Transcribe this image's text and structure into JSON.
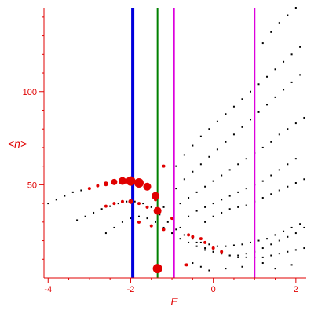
{
  "chart_data": {
    "type": "scatter",
    "title": "",
    "xlabel": "E",
    "ylabel": "<n>",
    "xlim": [
      -4.1,
      2.25
    ],
    "ylim": [
      0,
      145
    ],
    "x_ticks": [
      -4,
      -2,
      0,
      2
    ],
    "y_ticks": [
      50,
      100
    ],
    "grid": false,
    "colors": {
      "axes": "#e00000",
      "black_points": "#000000",
      "red_points": "#e00000",
      "blue_line": "#0000dd",
      "green_line": "#008000",
      "magenta_line": "#dd00dd"
    },
    "vertical_lines": [
      {
        "x": -1.95,
        "color": "#0000dd",
        "width": 4
      },
      {
        "x": -1.35,
        "color": "#008000",
        "width": 2
      },
      {
        "x": -0.95,
        "color": "#dd00dd",
        "width": 2
      },
      {
        "x": 1.0,
        "color": "#dd00dd",
        "width": 2
      }
    ],
    "black_series": [
      {
        "points": [
          [
            -4.0,
            40
          ],
          [
            -3.8,
            42
          ],
          [
            -3.6,
            44
          ],
          [
            -3.4,
            46
          ],
          [
            -3.2,
            47
          ],
          [
            -3.0,
            48
          ],
          [
            -2.8,
            49.5
          ],
          [
            -2.6,
            50.5
          ],
          [
            -2.4,
            51.5
          ],
          [
            -2.2,
            52
          ],
          [
            -2.0,
            52
          ],
          [
            -1.8,
            51
          ],
          [
            -1.6,
            49
          ],
          [
            -1.4,
            44
          ],
          [
            -1.2,
            38
          ],
          [
            -1.0,
            32
          ],
          [
            -0.8,
            27
          ],
          [
            -0.6,
            23
          ],
          [
            -0.4,
            19
          ],
          [
            -0.2,
            16
          ],
          [
            0.0,
            14
          ],
          [
            0.2,
            13
          ],
          [
            0.4,
            12
          ],
          [
            0.6,
            12
          ],
          [
            0.8,
            13
          ],
          [
            1.0,
            14
          ],
          [
            1.2,
            16
          ],
          [
            1.4,
            18
          ],
          [
            1.6,
            20
          ],
          [
            1.8,
            22
          ],
          [
            2.0,
            24
          ],
          [
            2.2,
            27
          ]
        ]
      },
      {
        "points": [
          [
            -3.3,
            31
          ],
          [
            -3.1,
            33
          ],
          [
            -2.9,
            35
          ],
          [
            -2.7,
            37
          ],
          [
            -2.5,
            38.5
          ],
          [
            -2.3,
            40
          ],
          [
            -2.1,
            41
          ],
          [
            -1.9,
            41
          ],
          [
            -1.7,
            40
          ],
          [
            -1.5,
            38
          ],
          [
            -1.3,
            34
          ],
          [
            -1.1,
            30
          ],
          [
            -0.9,
            26
          ],
          [
            -0.7,
            23
          ],
          [
            -0.5,
            21
          ],
          [
            -0.3,
            19
          ],
          [
            -0.1,
            18
          ],
          [
            0.1,
            17
          ],
          [
            0.3,
            17
          ],
          [
            0.5,
            17.5
          ],
          [
            0.7,
            18
          ],
          [
            0.9,
            19
          ],
          [
            1.1,
            20
          ],
          [
            1.3,
            21
          ],
          [
            1.5,
            23
          ],
          [
            1.7,
            25
          ],
          [
            1.9,
            27
          ],
          [
            2.1,
            29
          ]
        ]
      },
      {
        "points": [
          [
            -2.6,
            24
          ],
          [
            -2.4,
            27
          ],
          [
            -2.2,
            30
          ],
          [
            -2.0,
            32
          ],
          [
            -1.8,
            33
          ],
          [
            -1.6,
            32
          ],
          [
            -1.4,
            30
          ],
          [
            -1.2,
            27
          ],
          [
            -1.0,
            24
          ],
          [
            -0.8,
            21
          ],
          [
            -0.6,
            19
          ],
          [
            -0.4,
            17
          ],
          [
            -0.2,
            15
          ],
          [
            0.0,
            14
          ],
          [
            0.2,
            13
          ],
          [
            0.4,
            12
          ],
          [
            0.6,
            11
          ],
          [
            0.8,
            11
          ],
          [
            1.0,
            11
          ],
          [
            1.2,
            11
          ],
          [
            1.4,
            12
          ],
          [
            1.6,
            13
          ],
          [
            1.8,
            14
          ],
          [
            2.0,
            15
          ],
          [
            2.2,
            16
          ]
        ]
      },
      {
        "points": [
          [
            -0.9,
            60
          ],
          [
            -0.7,
            66
          ],
          [
            -0.5,
            71
          ],
          [
            -0.3,
            76
          ],
          [
            -0.1,
            80
          ],
          [
            0.1,
            84
          ],
          [
            0.3,
            88
          ],
          [
            0.5,
            92
          ],
          [
            0.7,
            96
          ],
          [
            0.9,
            100
          ],
          [
            1.1,
            104
          ],
          [
            1.3,
            108
          ],
          [
            1.5,
            112
          ],
          [
            1.7,
            116
          ],
          [
            1.9,
            120
          ],
          [
            2.1,
            124
          ]
        ]
      },
      {
        "points": [
          [
            -0.9,
            48
          ],
          [
            -0.7,
            53
          ],
          [
            -0.5,
            57
          ],
          [
            -0.3,
            61
          ],
          [
            -0.1,
            65
          ],
          [
            0.1,
            69
          ],
          [
            0.3,
            73
          ],
          [
            0.5,
            77
          ],
          [
            0.7,
            81
          ],
          [
            0.9,
            85
          ],
          [
            1.1,
            89
          ],
          [
            1.3,
            93
          ],
          [
            1.5,
            97
          ],
          [
            1.7,
            101
          ],
          [
            1.9,
            105
          ],
          [
            2.1,
            109
          ]
        ]
      },
      {
        "points": [
          [
            -0.8,
            40
          ],
          [
            -0.6,
            43
          ],
          [
            -0.4,
            46
          ],
          [
            -0.2,
            49
          ],
          [
            0.0,
            52
          ],
          [
            0.2,
            55
          ],
          [
            0.4,
            58
          ],
          [
            0.6,
            61
          ],
          [
            0.8,
            64
          ],
          [
            1.0,
            67
          ],
          [
            1.2,
            70
          ],
          [
            1.4,
            73
          ],
          [
            1.6,
            77
          ],
          [
            1.8,
            80
          ],
          [
            2.0,
            83
          ],
          [
            2.2,
            86
          ]
        ]
      },
      {
        "points": [
          [
            -0.6,
            33
          ],
          [
            -0.4,
            36
          ],
          [
            -0.2,
            38
          ],
          [
            0.0,
            40
          ],
          [
            0.2,
            42
          ],
          [
            0.4,
            44
          ],
          [
            0.6,
            46
          ],
          [
            0.8,
            48
          ],
          [
            1.0,
            50
          ],
          [
            1.2,
            52
          ],
          [
            1.4,
            55
          ],
          [
            1.6,
            58
          ],
          [
            1.8,
            61
          ],
          [
            2.0,
            64
          ]
        ]
      },
      {
        "points": [
          [
            -0.2,
            30
          ],
          [
            0.0,
            33
          ],
          [
            0.2,
            35
          ],
          [
            0.4,
            37
          ],
          [
            0.6,
            38
          ],
          [
            0.8,
            39
          ],
          [
            1.0,
            41
          ],
          [
            1.2,
            43
          ],
          [
            1.4,
            45
          ],
          [
            1.6,
            47
          ],
          [
            1.8,
            49
          ],
          [
            2.0,
            51
          ],
          [
            2.2,
            53
          ]
        ]
      },
      {
        "points": [
          [
            1.2,
            126
          ],
          [
            1.4,
            132
          ],
          [
            1.6,
            137
          ],
          [
            1.8,
            141
          ],
          [
            2.0,
            145
          ]
        ]
      },
      {
        "points": [
          [
            -0.5,
            8
          ],
          [
            -0.3,
            6
          ],
          [
            -0.1,
            4
          ],
          [
            0.3,
            5
          ],
          [
            0.7,
            6
          ],
          [
            1.2,
            8
          ],
          [
            1.5,
            5
          ],
          [
            1.9,
            7
          ]
        ]
      }
    ],
    "red_series": [
      {
        "name": "",
        "points": [
          [
            -3.0,
            48
          ],
          [
            -2.8,
            49.5
          ],
          [
            -2.6,
            50.5
          ],
          [
            -2.4,
            51.5
          ],
          [
            -2.2,
            52
          ],
          [
            -2.0,
            52
          ],
          [
            -1.8,
            51
          ],
          [
            -1.6,
            49
          ],
          [
            -1.4,
            44
          ],
          [
            -1.0,
            32
          ],
          [
            -0.6,
            23
          ],
          [
            -0.5,
            22
          ],
          [
            -0.3,
            21
          ],
          [
            -0.2,
            19
          ],
          [
            0.0,
            16
          ],
          [
            0.2,
            14
          ]
        ],
        "sizes": [
          2,
          2,
          3,
          4,
          5,
          6,
          6,
          5,
          5,
          2,
          2,
          2,
          2,
          2,
          2,
          2
        ]
      },
      {
        "points": [
          [
            -2.6,
            38.5
          ],
          [
            -2.4,
            40
          ],
          [
            -2.2,
            41
          ],
          [
            -2.0,
            41
          ],
          [
            -1.8,
            40
          ],
          [
            -1.6,
            38
          ],
          [
            -1.4,
            36
          ]
        ],
        "sizes": [
          2,
          2,
          2,
          3,
          2,
          2,
          2
        ]
      },
      {
        "points": [
          [
            -1.35,
            36
          ],
          [
            -1.35,
            5
          ]
        ],
        "sizes": [
          5,
          6
        ]
      },
      {
        "points": [
          [
            -1.2,
            60
          ],
          [
            -1.4,
            42
          ],
          [
            -1.5,
            28
          ],
          [
            -1.8,
            30
          ],
          [
            -1.2,
            26
          ],
          [
            -0.65,
            7
          ]
        ],
        "sizes": [
          2,
          2,
          2,
          2,
          2,
          2
        ]
      }
    ]
  }
}
